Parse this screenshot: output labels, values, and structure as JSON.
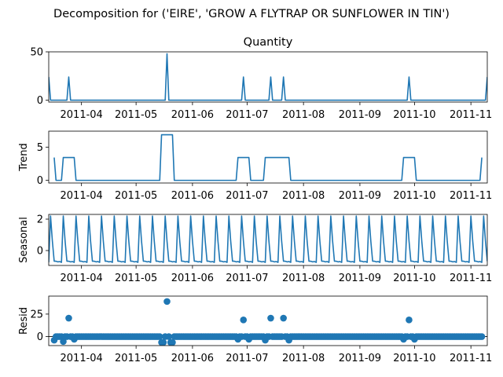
{
  "figure": {
    "title": "Decomposition for ('EIRE', 'GROW A FLYTRAP OR SUNFLOWER IN TIN')"
  },
  "chart_data": [
    {
      "type": "line",
      "panel": "observed",
      "title": "Quantity",
      "ylabel": "",
      "xlim": [
        "2011-03-14",
        "2011-11-10"
      ],
      "ylim": [
        -2,
        50
      ],
      "yticks": [
        0,
        50
      ],
      "xticks": [
        "2011-04-01",
        "2011-05-01",
        "2011-06-01",
        "2011-07-01",
        "2011-08-01",
        "2011-09-01",
        "2011-10-01",
        "2011-11-01"
      ],
      "xtick_labels": [
        "2011-04",
        "2011-05",
        "2011-06",
        "2011-07",
        "2011-08",
        "2011-09",
        "2011-10",
        "2011-11"
      ],
      "start_date": "2011-03-14",
      "end_date": "2011-11-10",
      "baseline": 0,
      "spikes": [
        {
          "date": "2011-03-14",
          "value": 24
        },
        {
          "date": "2011-03-25",
          "value": 24
        },
        {
          "date": "2011-05-18",
          "value": 48
        },
        {
          "date": "2011-06-29",
          "value": 24
        },
        {
          "date": "2011-07-14",
          "value": 24
        },
        {
          "date": "2011-07-21",
          "value": 24
        },
        {
          "date": "2011-09-28",
          "value": 24
        },
        {
          "date": "2011-11-10",
          "value": 24
        }
      ]
    },
    {
      "type": "line",
      "panel": "trend",
      "title": "",
      "ylabel": "Trend",
      "xlim": [
        "2011-03-14",
        "2011-11-10"
      ],
      "ylim": [
        -0.4,
        7.4
      ],
      "yticks": [
        0,
        5
      ],
      "xticks": [
        "2011-04-01",
        "2011-05-01",
        "2011-06-01",
        "2011-07-01",
        "2011-08-01",
        "2011-09-01",
        "2011-10-01",
        "2011-11-01"
      ],
      "xtick_labels": [
        "2011-04",
        "2011-05",
        "2011-06",
        "2011-07",
        "2011-08",
        "2011-09",
        "2011-10",
        "2011-11"
      ],
      "points": [
        [
          "2011-03-17",
          3.43
        ],
        [
          "2011-03-18",
          0
        ],
        [
          "2011-03-21",
          0
        ],
        [
          "2011-03-22",
          3.43
        ],
        [
          "2011-03-28",
          3.43
        ],
        [
          "2011-03-29",
          0
        ],
        [
          "2011-05-14",
          0
        ],
        [
          "2011-05-15",
          6.86
        ],
        [
          "2011-05-21",
          6.86
        ],
        [
          "2011-05-22",
          0
        ],
        [
          "2011-06-25",
          0
        ],
        [
          "2011-06-26",
          3.43
        ],
        [
          "2011-07-02",
          3.43
        ],
        [
          "2011-07-03",
          0
        ],
        [
          "2011-07-10",
          0
        ],
        [
          "2011-07-11",
          3.43
        ],
        [
          "2011-07-24",
          3.43
        ],
        [
          "2011-07-25",
          0
        ],
        [
          "2011-09-24",
          0
        ],
        [
          "2011-09-25",
          3.43
        ],
        [
          "2011-10-01",
          3.43
        ],
        [
          "2011-10-02",
          0
        ],
        [
          "2011-11-06",
          0
        ],
        [
          "2011-11-07",
          3.43
        ]
      ]
    },
    {
      "type": "line",
      "panel": "seasonal",
      "title": "",
      "ylabel": "Seasonal",
      "xlim": [
        "2011-03-14",
        "2011-11-10"
      ],
      "ylim": [
        -0.95,
        2.3
      ],
      "yticks": [
        0,
        2
      ],
      "xticks": [
        "2011-04-01",
        "2011-05-01",
        "2011-06-01",
        "2011-07-01",
        "2011-08-01",
        "2011-09-01",
        "2011-10-01",
        "2011-11-01"
      ],
      "xtick_labels": [
        "2011-04",
        "2011-05",
        "2011-06",
        "2011-07",
        "2011-08",
        "2011-09",
        "2011-10",
        "2011-11"
      ],
      "start_date": "2011-03-14",
      "end_date": "2011-11-10",
      "weekly_pattern": [
        -0.75,
        2.2,
        0.6,
        -0.68,
        -0.68,
        -0.72,
        -0.7
      ]
    },
    {
      "type": "scatter",
      "panel": "resid",
      "title": "",
      "ylabel": "Resid",
      "xlim": [
        "2011-03-14",
        "2011-11-10"
      ],
      "ylim": [
        -10,
        45
      ],
      "yticks": [
        0,
        25
      ],
      "xticks": [
        "2011-04-01",
        "2011-05-01",
        "2011-06-01",
        "2011-07-01",
        "2011-08-01",
        "2011-09-01",
        "2011-10-01",
        "2011-11-01"
      ],
      "xtick_labels": [
        "2011-04",
        "2011-05",
        "2011-06",
        "2011-07",
        "2011-08",
        "2011-09",
        "2011-10",
        "2011-11"
      ],
      "start_date": "2011-03-17",
      "end_date": "2011-11-07",
      "default_resid": 0,
      "large_points": [
        [
          "2011-03-25",
          20.5
        ],
        [
          "2011-05-18",
          39
        ],
        [
          "2011-06-29",
          18.5
        ],
        [
          "2011-07-14",
          20.5
        ],
        [
          "2011-07-21",
          20.5
        ],
        [
          "2011-09-28",
          18.5
        ]
      ],
      "negative_points": [
        [
          "2011-03-17",
          -4
        ],
        [
          "2011-03-22",
          -5.5
        ],
        [
          "2011-03-28",
          -3
        ],
        [
          "2011-05-15",
          -6.5
        ],
        [
          "2011-05-16",
          -6.5
        ],
        [
          "2011-05-20",
          -6.5
        ],
        [
          "2011-05-21",
          -6.5
        ],
        [
          "2011-06-26",
          -3
        ],
        [
          "2011-07-02",
          -3
        ],
        [
          "2011-07-11",
          -4
        ],
        [
          "2011-07-24",
          -4
        ],
        [
          "2011-09-25",
          -3
        ],
        [
          "2011-10-01",
          -3
        ]
      ]
    }
  ]
}
